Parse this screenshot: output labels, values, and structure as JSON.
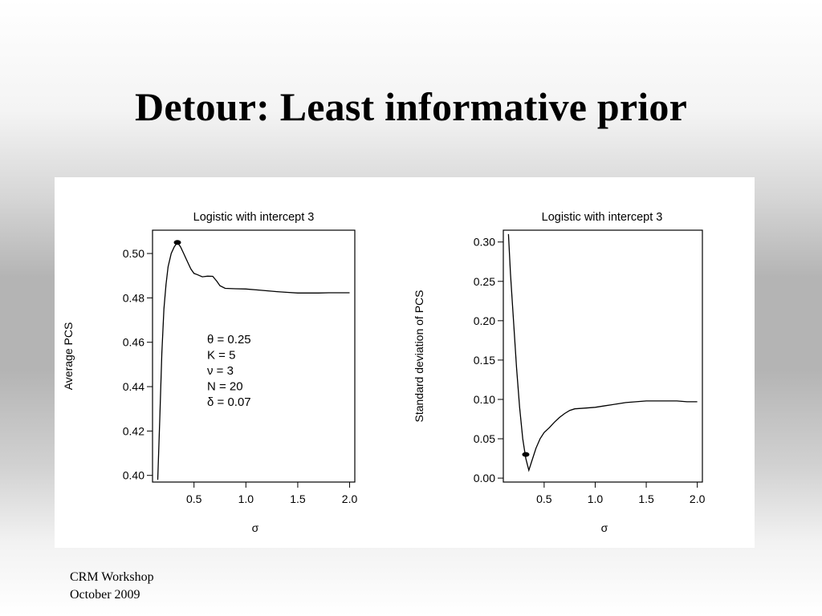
{
  "slide": {
    "title": "Detour: Least informative prior",
    "footer_line1": "CRM Workshop",
    "footer_line2": "October 2009"
  },
  "chart_data": [
    {
      "type": "line",
      "title": "Logistic with intercept 3",
      "xlabel": "σ",
      "ylabel": "Average PCS",
      "xlim": [
        0.1,
        2.05
      ],
      "ylim": [
        0.397,
        0.5105
      ],
      "x_ticks": [
        0.5,
        1.0,
        1.5,
        2.0
      ],
      "x_tick_labels": [
        "0.5",
        "1.0",
        "1.5",
        "2.0"
      ],
      "y_ticks": [
        0.4,
        0.42,
        0.44,
        0.46,
        0.48,
        0.5
      ],
      "y_tick_labels": [
        "0.40",
        "0.42",
        "0.44",
        "0.46",
        "0.48",
        "0.50"
      ],
      "series": [
        {
          "x": [
            0.15,
            0.17,
            0.19,
            0.21,
            0.23,
            0.25,
            0.28,
            0.31,
            0.34,
            0.37,
            0.4,
            0.44,
            0.47,
            0.5,
            0.53,
            0.58,
            0.63,
            0.68,
            0.72,
            0.75,
            0.8,
            0.9,
            1.0,
            1.1,
            1.2,
            1.3,
            1.4,
            1.5,
            1.6,
            1.7,
            1.8,
            1.9,
            2.0
          ],
          "y": [
            0.398,
            0.425,
            0.455,
            0.475,
            0.486,
            0.494,
            0.5,
            0.503,
            0.505,
            0.503,
            0.5,
            0.496,
            0.493,
            0.491,
            0.4905,
            0.4895,
            0.4898,
            0.4897,
            0.4875,
            0.4855,
            0.4843,
            0.4841,
            0.484,
            0.4836,
            0.4832,
            0.4828,
            0.4825,
            0.4822,
            0.4822,
            0.4822,
            0.4823,
            0.4823,
            0.4823
          ]
        }
      ],
      "marker": {
        "x": 0.34,
        "y": 0.505
      },
      "annotation": [
        "θ = 0.25",
        "K = 5",
        "ν = 3",
        "N = 20",
        "δ = 0.07"
      ]
    },
    {
      "type": "line",
      "title": "Logistic with intercept 3",
      "xlabel": "σ",
      "ylabel": "Standard deviation of PCS",
      "xlim": [
        0.1,
        2.05
      ],
      "ylim": [
        -0.005,
        0.315
      ],
      "x_ticks": [
        0.5,
        1.0,
        1.5,
        2.0
      ],
      "x_tick_labels": [
        "0.5",
        "1.0",
        "1.5",
        "2.0"
      ],
      "y_ticks": [
        0.0,
        0.05,
        0.1,
        0.15,
        0.2,
        0.25,
        0.3
      ],
      "y_tick_labels": [
        "0.00",
        "0.05",
        "0.10",
        "0.15",
        "0.20",
        "0.25",
        "0.30"
      ],
      "series": [
        {
          "x": [
            0.15,
            0.17,
            0.2,
            0.23,
            0.26,
            0.29,
            0.32,
            0.35,
            0.38,
            0.42,
            0.46,
            0.5,
            0.55,
            0.6,
            0.65,
            0.7,
            0.75,
            0.8,
            0.9,
            1.0,
            1.1,
            1.2,
            1.3,
            1.4,
            1.5,
            1.6,
            1.7,
            1.8,
            1.9,
            2.0
          ],
          "y": [
            0.31,
            0.26,
            0.2,
            0.14,
            0.09,
            0.05,
            0.025,
            0.01,
            0.022,
            0.038,
            0.05,
            0.058,
            0.064,
            0.071,
            0.077,
            0.082,
            0.086,
            0.088,
            0.089,
            0.09,
            0.092,
            0.094,
            0.096,
            0.097,
            0.098,
            0.098,
            0.098,
            0.098,
            0.097,
            0.097
          ]
        }
      ],
      "marker": {
        "x": 0.32,
        "y": 0.03
      }
    }
  ]
}
